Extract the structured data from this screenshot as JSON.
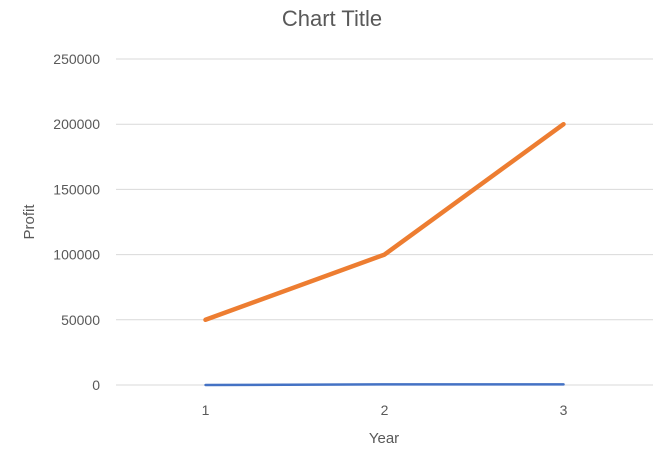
{
  "chart_data": {
    "type": "line",
    "title": "Chart Title",
    "xlabel": "Year",
    "ylabel": "Profit",
    "categories": [
      "1",
      "2",
      "3"
    ],
    "ylim": [
      0,
      250000
    ],
    "yticks": [
      "0",
      "50000",
      "100000",
      "150000",
      "200000",
      "250000"
    ],
    "grid": true,
    "legend": "none",
    "series": [
      {
        "values": [
          0,
          500,
          500
        ],
        "color": "#4472C4"
      },
      {
        "values": [
          50000,
          100000,
          200000
        ],
        "color": "#ED7D31"
      }
    ]
  }
}
